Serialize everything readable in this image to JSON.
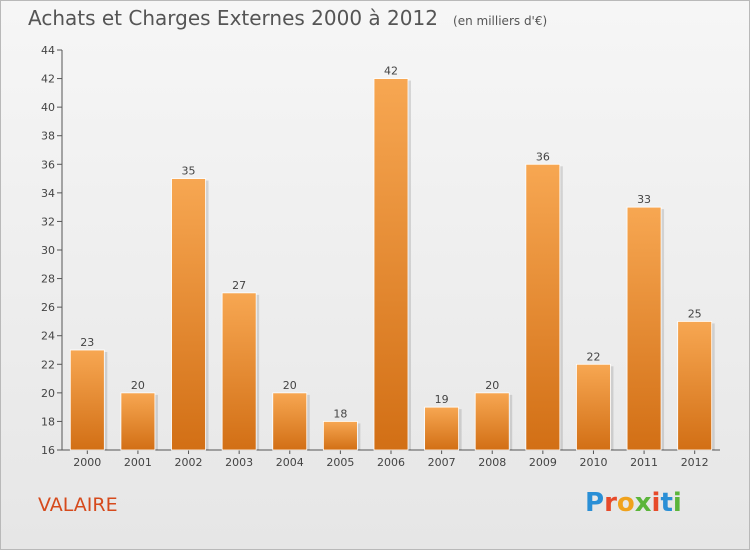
{
  "header": {
    "title": "Achats et Charges Externes 2000 à 2012",
    "subtitle": "(en milliers d'€)"
  },
  "footer": {
    "location": "VALAIRE",
    "logo_text": "Proxiti"
  },
  "colors": {
    "bar_top": "#f7a752",
    "bar_bottom": "#d26f15",
    "axis": "#555555",
    "location": "#d64a1c"
  },
  "chart_data": {
    "type": "bar",
    "title": "Achats et Charges Externes 2000 à 2012",
    "subtitle": "(en milliers d'€)",
    "xlabel": "",
    "ylabel": "",
    "categories": [
      "2000",
      "2001",
      "2002",
      "2003",
      "2004",
      "2005",
      "2006",
      "2007",
      "2008",
      "2009",
      "2010",
      "2011",
      "2012"
    ],
    "values": [
      23,
      20,
      35,
      27,
      20,
      18,
      42,
      19,
      20,
      36,
      22,
      33,
      25
    ],
    "ylim": [
      16,
      44
    ],
    "yticks": [
      16,
      18,
      20,
      22,
      24,
      26,
      28,
      30,
      32,
      34,
      36,
      38,
      40,
      42,
      44
    ],
    "grid": false,
    "data_labels": true
  }
}
